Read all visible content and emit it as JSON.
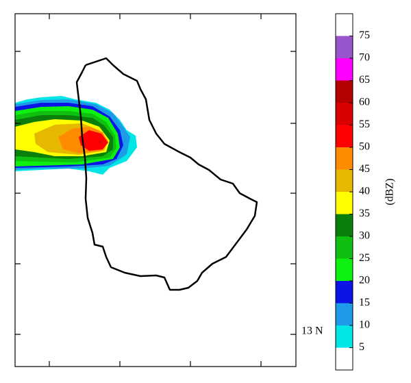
{
  "map": {
    "lat_label": "13 N"
  },
  "colorbar": {
    "label": "(dBZ)",
    "clim": [
      0,
      80
    ],
    "ticks": [
      5,
      10,
      15,
      20,
      25,
      30,
      35,
      40,
      45,
      50,
      55,
      60,
      65,
      70,
      75
    ],
    "colors": [
      "#ffffff",
      "#00e5e5",
      "#1e9be8",
      "#0a14e6",
      "#0ef00e",
      "#10c010",
      "#0a7f0a",
      "#ffff00",
      "#e6b800",
      "#ff8c00",
      "#ff0000",
      "#d80000",
      "#b40000",
      "#ff00ff",
      "#9955cc",
      "#ffffff"
    ]
  }
}
